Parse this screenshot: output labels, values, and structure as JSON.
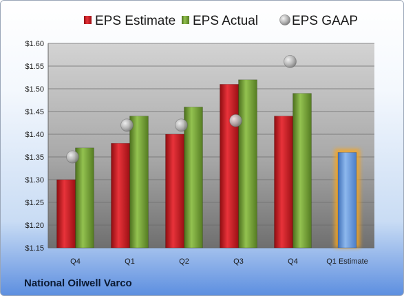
{
  "company": "National Oilwell Varco",
  "chart_data": {
    "type": "bar",
    "categories": [
      "Q4",
      "Q1",
      "Q2",
      "Q3",
      "Q4",
      "Q1 Estimate"
    ],
    "series": [
      {
        "name": "EPS Estimate",
        "type": "bar",
        "color": "#c8161d",
        "values": [
          1.3,
          1.38,
          1.4,
          1.51,
          1.44,
          null
        ]
      },
      {
        "name": "EPS Actual",
        "type": "bar",
        "color": "#6e9a2e",
        "values": [
          1.37,
          1.44,
          1.46,
          1.52,
          1.49,
          null
        ]
      },
      {
        "name": "EPS GAAP",
        "type": "scatter",
        "color": "#a8a8a8",
        "values": [
          1.35,
          1.42,
          1.42,
          1.43,
          1.56,
          null
        ]
      },
      {
        "name": "",
        "type": "bar",
        "color": "#6b9ee0",
        "values": [
          null,
          null,
          null,
          null,
          null,
          1.36
        ]
      }
    ],
    "ylim": [
      1.15,
      1.6
    ],
    "yticks": [
      "$1.15",
      "$1.20",
      "$1.25",
      "$1.30",
      "$1.35",
      "$1.40",
      "$1.45",
      "$1.50",
      "$1.55",
      "$1.60"
    ],
    "grid": true,
    "legend_position": "top"
  }
}
